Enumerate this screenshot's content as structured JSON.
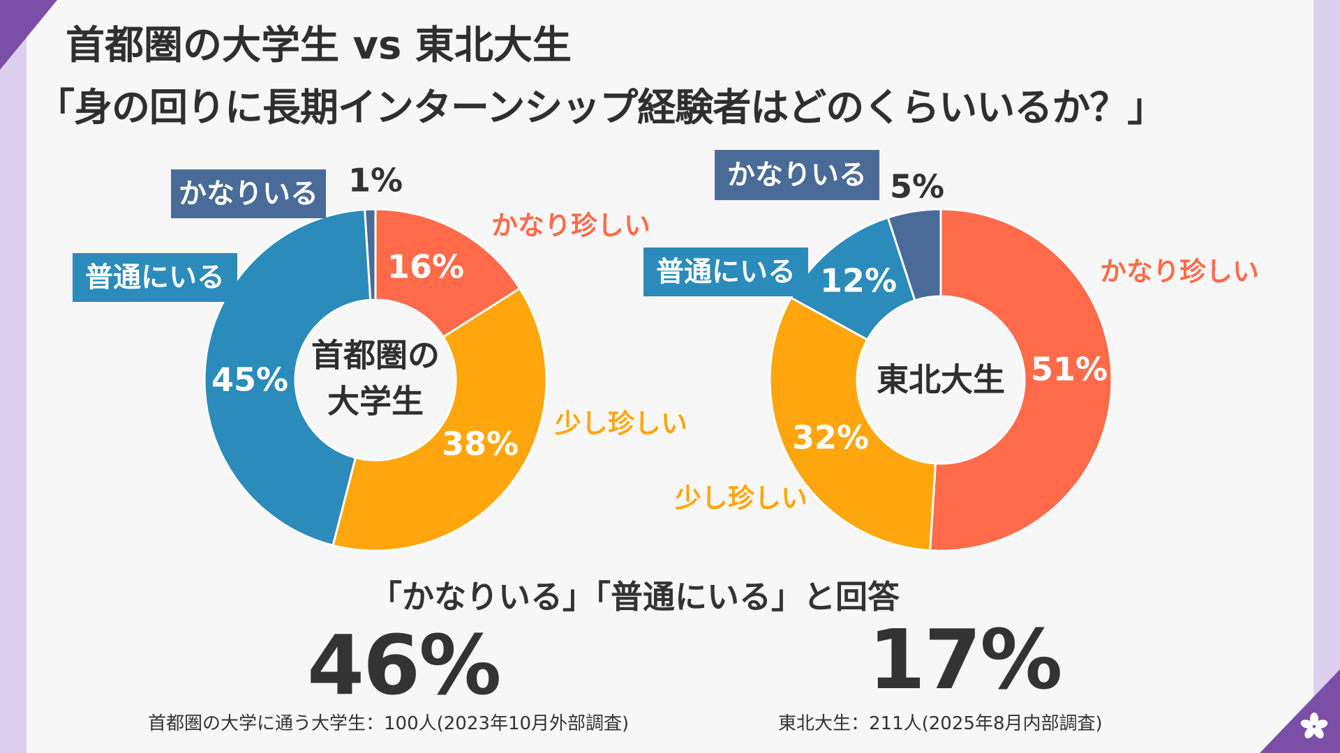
{
  "title": {
    "line1": "首都圏の大学生 vs 東北大生",
    "line2": "「身の回りに長期インターンシップ経験者はどのくらいいるか？」"
  },
  "chart_data": [
    {
      "type": "pie",
      "variant": "donut",
      "center_label": [
        "首都圏の",
        "大学生"
      ],
      "slices": [
        {
          "label": "かなり珍しい",
          "value": 16,
          "value_label": "16%",
          "color": "#ff6b4a"
        },
        {
          "label": "少し珍しい",
          "value": 38,
          "value_label": "38%",
          "color": "#ffa60f"
        },
        {
          "label": "普通にいる",
          "value": 45,
          "value_label": "45%",
          "color": "#2b8bbb"
        },
        {
          "label": "かなりいる",
          "value": 1,
          "value_label": "1%",
          "color": "#4a6b97"
        }
      ]
    },
    {
      "type": "pie",
      "variant": "donut",
      "center_label": [
        "東北大生"
      ],
      "slices": [
        {
          "label": "かなり珍しい",
          "value": 51,
          "value_label": "51%",
          "color": "#ff6b4a"
        },
        {
          "label": "少し珍しい",
          "value": 32,
          "value_label": "32%",
          "color": "#ffa60f"
        },
        {
          "label": "普通にいる",
          "value": 12,
          "value_label": "12%",
          "color": "#2b8bbb"
        },
        {
          "label": "かなりいる",
          "value": 5,
          "value_label": "5%",
          "color": "#4a6b97"
        }
      ]
    }
  ],
  "summary": {
    "caption": "「かなりいる」「普通にいる」と回答",
    "left_value": "46%",
    "right_value": "17%"
  },
  "footnotes": {
    "left": "首都圏の大学に通う大学生：100人(2023年10月外部調査)",
    "right": "東北大生：211人(2025年8月内部調査)"
  },
  "colors": {
    "slide_background": "#f7f7f7",
    "frame": "#ddd0ef",
    "corner_accent": "#7b4fa8",
    "text": "#333333"
  },
  "icons": {
    "corner_logo": "flower-logo-icon"
  }
}
